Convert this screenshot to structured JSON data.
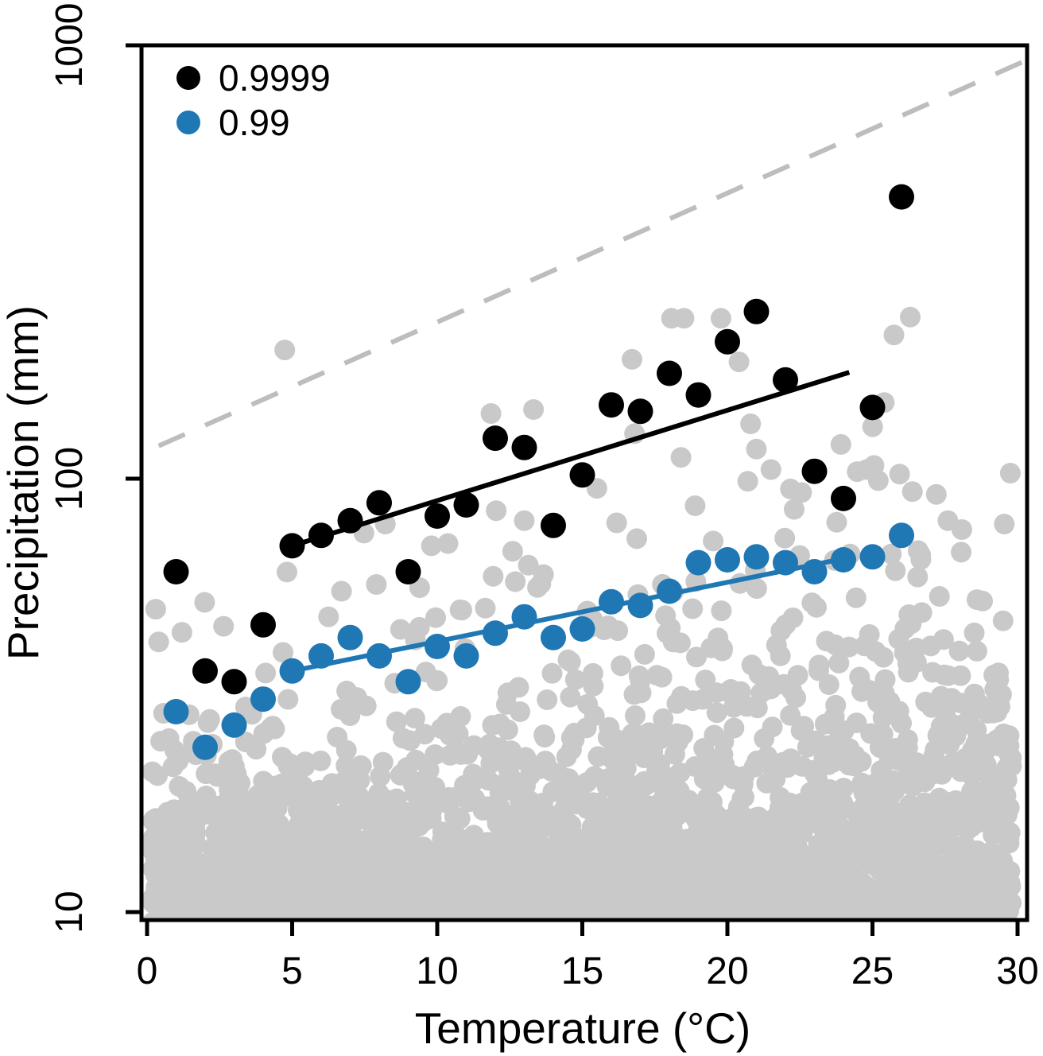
{
  "chart_data": {
    "type": "scatter",
    "title": "",
    "xlabel": "Temperature (°C)",
    "ylabel": "Precipitation (mm)",
    "xlim": [
      0,
      30
    ],
    "ylim": [
      10,
      1000
    ],
    "y_scale": "log10",
    "x_ticks": [
      0,
      5,
      10,
      15,
      20,
      25,
      30
    ],
    "y_ticks": [
      10,
      100,
      1000
    ],
    "grid": false,
    "legend": {
      "position": "top-left",
      "items": [
        {
          "label": "0.9999",
          "color": "#000000"
        },
        {
          "label": "0.99",
          "color": "#1f77b4"
        }
      ]
    },
    "series": [
      {
        "name": "quantile-0.9999",
        "label": "0.9999",
        "color": "#000000",
        "radius": 16,
        "points": [
          [
            1,
            61
          ],
          [
            2,
            36
          ],
          [
            3,
            34
          ],
          [
            4,
            46
          ],
          [
            5,
            70
          ],
          [
            6,
            74
          ],
          [
            7,
            80
          ],
          [
            8,
            88
          ],
          [
            9,
            61
          ],
          [
            10,
            82
          ],
          [
            11,
            87
          ],
          [
            12,
            124
          ],
          [
            13,
            118
          ],
          [
            14,
            78
          ],
          [
            15,
            102
          ],
          [
            16,
            148
          ],
          [
            17,
            143
          ],
          [
            18,
            175
          ],
          [
            19,
            156
          ],
          [
            20,
            207
          ],
          [
            21,
            243
          ],
          [
            22,
            169
          ],
          [
            23,
            104
          ],
          [
            24,
            90
          ],
          [
            25,
            146
          ],
          [
            26,
            447
          ]
        ]
      },
      {
        "name": "quantile-0.99",
        "label": "0.99",
        "color": "#1f77b4",
        "radius": 16,
        "points": [
          [
            1,
            29
          ],
          [
            2,
            24
          ],
          [
            3,
            27
          ],
          [
            4,
            31
          ],
          [
            5,
            36
          ],
          [
            6,
            39
          ],
          [
            7,
            43
          ],
          [
            8,
            39
          ],
          [
            9,
            34
          ],
          [
            10,
            41
          ],
          [
            11,
            39
          ],
          [
            12,
            44
          ],
          [
            13,
            48
          ],
          [
            14,
            43
          ],
          [
            15,
            45
          ],
          [
            16,
            52
          ],
          [
            17,
            51
          ],
          [
            18,
            55
          ],
          [
            19,
            64
          ],
          [
            20,
            65
          ],
          [
            21,
            66
          ],
          [
            22,
            64
          ],
          [
            23,
            61
          ],
          [
            24,
            65
          ],
          [
            25,
            66
          ],
          [
            26,
            74
          ]
        ]
      }
    ],
    "lines": [
      {
        "name": "cc-scaling-reference",
        "color": "#bdbdbd",
        "width": 6,
        "dash": [
          36,
          28
        ],
        "x": [
          0.4,
          30.4
        ],
        "y": [
          119,
          930
        ]
      },
      {
        "name": "fit-0.9999",
        "color": "#000000",
        "width": 6,
        "dash": null,
        "x": [
          5,
          24.2
        ],
        "y": [
          70,
          176
        ]
      },
      {
        "name": "fit-0.99",
        "color": "#1f77b4",
        "width": 6,
        "dash": null,
        "x": [
          5,
          24.3
        ],
        "y": [
          36,
          66
        ]
      }
    ],
    "background_points": {
      "name": "all-events",
      "color": "#c9c9c9",
      "radius": 13,
      "count": 3000,
      "seed": 12345,
      "x_range": [
        0.15,
        29.8
      ],
      "log10_floor": 0.95,
      "tail_mean_base": 0.13,
      "tail_mean_slope": 0.004,
      "standout_points": [
        [
          20.4,
          186
        ],
        [
          26.3,
          236
        ],
        [
          21,
          117
        ],
        [
          18.4,
          112
        ],
        [
          16.8,
          127
        ],
        [
          24.8,
          105
        ],
        [
          25.2,
          99
        ],
        [
          21.5,
          105
        ],
        [
          22.3,
          85
        ],
        [
          15.5,
          95
        ],
        [
          13,
          80
        ],
        [
          12.6,
          68
        ],
        [
          27.2,
          92
        ],
        [
          27.6,
          80
        ],
        [
          9.8,
          70
        ],
        [
          7.9,
          57
        ],
        [
          6.7,
          55
        ],
        [
          0.3,
          50
        ],
        [
          0.4,
          42
        ],
        [
          29.5,
          47
        ],
        [
          28.6,
          40
        ]
      ]
    }
  }
}
